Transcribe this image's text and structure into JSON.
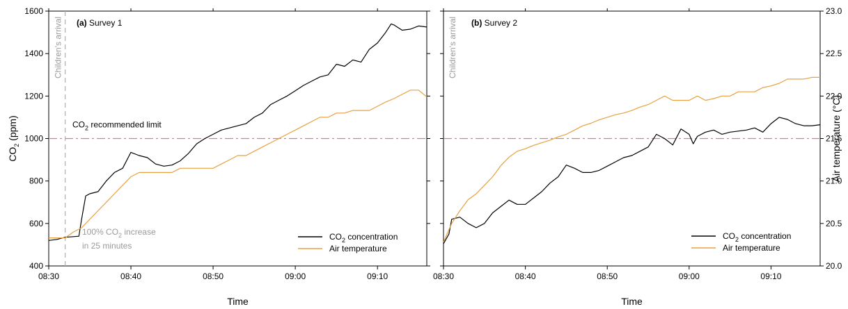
{
  "chart_data": [
    {
      "type": "line",
      "panel_label": "(a)",
      "title": "Survey 1",
      "xlabel": "Time",
      "ylabel": "CO₂ (ppm)",
      "x_ticks": [
        "08:30",
        "08:40",
        "08:50",
        "09:00",
        "09:10"
      ],
      "xlim": [
        "08:30",
        "09:16"
      ],
      "ylim": [
        400,
        1600
      ],
      "y_ticks": [
        "400",
        "600",
        "800",
        "1000",
        "1200",
        "1400",
        "1600"
      ],
      "y2lim": [
        20.0,
        23.0
      ],
      "grid": false,
      "legend_position": "bottom-right",
      "colors": {
        "co2": "#000000",
        "temp": "#e8a040",
        "limit": "#d98080",
        "arrival": "#b0b0b0"
      },
      "reference_line": {
        "value": 1000,
        "label": "CO₂ recommended limit"
      },
      "vertical_marker": {
        "x": "08:32",
        "label": "Children's arrival"
      },
      "annotation": [
        "100% CO₂ increase",
        "in 25 minutes"
      ],
      "series": [
        {
          "name": "CO₂ concentration",
          "axis": "left",
          "points": [
            [
              "08:30",
              520
            ],
            [
              "08:31",
              525
            ],
            [
              "08:32",
              535
            ],
            [
              "08:33",
              538
            ],
            [
              "08:33:40",
              540
            ],
            [
              "08:34",
              620
            ],
            [
              "08:34:30",
              730
            ],
            [
              "08:35",
              740
            ],
            [
              "08:36",
              750
            ],
            [
              "08:37",
              800
            ],
            [
              "08:38",
              840
            ],
            [
              "08:39",
              860
            ],
            [
              "08:40",
              935
            ],
            [
              "08:41",
              920
            ],
            [
              "08:42",
              910
            ],
            [
              "08:43",
              880
            ],
            [
              "08:44",
              870
            ],
            [
              "08:45",
              875
            ],
            [
              "08:46",
              895
            ],
            [
              "08:47",
              930
            ],
            [
              "08:48",
              975
            ],
            [
              "08:49",
              1000
            ],
            [
              "08:50",
              1020
            ],
            [
              "08:51",
              1040
            ],
            [
              "08:52",
              1050
            ],
            [
              "08:53",
              1060
            ],
            [
              "08:54",
              1070
            ],
            [
              "08:55",
              1100
            ],
            [
              "08:56",
              1120
            ],
            [
              "08:57",
              1160
            ],
            [
              "08:58",
              1180
            ],
            [
              "08:59",
              1200
            ],
            [
              "09:00",
              1225
            ],
            [
              "09:01",
              1250
            ],
            [
              "09:02",
              1270
            ],
            [
              "09:03",
              1290
            ],
            [
              "09:04",
              1300
            ],
            [
              "09:05",
              1350
            ],
            [
              "09:06",
              1340
            ],
            [
              "09:07",
              1370
            ],
            [
              "09:08",
              1360
            ],
            [
              "09:09",
              1420
            ],
            [
              "09:10",
              1450
            ],
            [
              "09:11",
              1500
            ],
            [
              "09:11:40",
              1540
            ],
            [
              "09:12",
              1535
            ],
            [
              "09:13",
              1510
            ],
            [
              "09:14",
              1515
            ],
            [
              "09:15",
              1530
            ],
            [
              "09:16",
              1525
            ]
          ]
        },
        {
          "name": "Air temperature",
          "axis": "right",
          "points": [
            [
              "08:30",
              20.33
            ],
            [
              "08:32",
              20.33
            ],
            [
              "08:33",
              20.4
            ],
            [
              "08:34",
              20.45
            ],
            [
              "08:35",
              20.55
            ],
            [
              "08:36",
              20.65
            ],
            [
              "08:37",
              20.75
            ],
            [
              "08:38",
              20.85
            ],
            [
              "08:39",
              20.95
            ],
            [
              "08:40",
              21.05
            ],
            [
              "08:41",
              21.1
            ],
            [
              "08:42",
              21.1
            ],
            [
              "08:45",
              21.1
            ],
            [
              "08:46",
              21.15
            ],
            [
              "08:50",
              21.15
            ],
            [
              "08:51",
              21.2
            ],
            [
              "08:52",
              21.25
            ],
            [
              "08:53",
              21.3
            ],
            [
              "08:54",
              21.3
            ],
            [
              "08:55",
              21.35
            ],
            [
              "08:56",
              21.4
            ],
            [
              "08:57",
              21.45
            ],
            [
              "08:58",
              21.5
            ],
            [
              "08:59",
              21.55
            ],
            [
              "09:00",
              21.6
            ],
            [
              "09:01",
              21.65
            ],
            [
              "09:02",
              21.7
            ],
            [
              "09:03",
              21.75
            ],
            [
              "09:04",
              21.75
            ],
            [
              "09:05",
              21.8
            ],
            [
              "09:06",
              21.8
            ],
            [
              "09:07",
              21.83
            ],
            [
              "09:09",
              21.83
            ],
            [
              "09:10",
              21.88
            ],
            [
              "09:11",
              21.93
            ],
            [
              "09:12",
              21.97
            ],
            [
              "09:13",
              22.02
            ],
            [
              "09:14",
              22.07
            ],
            [
              "09:15",
              22.07
            ],
            [
              "09:16",
              21.99
            ]
          ]
        }
      ]
    },
    {
      "type": "line",
      "panel_label": "(b)",
      "title": "Survey 2",
      "xlabel": "Time",
      "ylabel": "Air temperature (°C)",
      "x_ticks": [
        "08:30",
        "08:40",
        "08:50",
        "09:00",
        "09:10"
      ],
      "xlim": [
        "08:30",
        "09:16"
      ],
      "ylim": [
        400,
        1600
      ],
      "y2lim": [
        20.0,
        23.0
      ],
      "y2_ticks": [
        "20.0",
        "20.5",
        "21.0",
        "21.5",
        "22.0",
        "22.5",
        "23.0"
      ],
      "grid": false,
      "legend_position": "bottom-right",
      "colors": {
        "co2": "#000000",
        "temp": "#e8a040",
        "limit": "#d98080",
        "arrival": "#b0b0b0"
      },
      "reference_line": {
        "value": 1000
      },
      "vertical_marker": {
        "x": "08:30",
        "label": "Children's arrival"
      },
      "series": [
        {
          "name": "CO₂ concentration",
          "axis": "left",
          "points": [
            [
              "08:30",
              505
            ],
            [
              "08:30:40",
              550
            ],
            [
              "08:31",
              620
            ],
            [
              "08:32",
              630
            ],
            [
              "08:33",
              600
            ],
            [
              "08:34",
              580
            ],
            [
              "08:35",
              600
            ],
            [
              "08:36",
              650
            ],
            [
              "08:37",
              680
            ],
            [
              "08:38",
              710
            ],
            [
              "08:39",
              690
            ],
            [
              "08:40",
              690
            ],
            [
              "08:41",
              720
            ],
            [
              "08:42",
              750
            ],
            [
              "08:43",
              790
            ],
            [
              "08:44",
              820
            ],
            [
              "08:45",
              875
            ],
            [
              "08:46",
              860
            ],
            [
              "08:47",
              840
            ],
            [
              "08:48",
              840
            ],
            [
              "08:49",
              850
            ],
            [
              "08:50",
              870
            ],
            [
              "08:51",
              890
            ],
            [
              "08:52",
              910
            ],
            [
              "08:53",
              920
            ],
            [
              "08:54",
              940
            ],
            [
              "08:55",
              960
            ],
            [
              "08:56",
              1020
            ],
            [
              "08:57",
              1000
            ],
            [
              "08:58",
              970
            ],
            [
              "08:59",
              1045
            ],
            [
              "09:00",
              1020
            ],
            [
              "09:00:30",
              975
            ],
            [
              "09:01",
              1010
            ],
            [
              "09:02",
              1030
            ],
            [
              "09:03",
              1040
            ],
            [
              "09:04",
              1020
            ],
            [
              "09:05",
              1030
            ],
            [
              "09:06",
              1035
            ],
            [
              "09:07",
              1040
            ],
            [
              "09:08",
              1050
            ],
            [
              "09:09",
              1030
            ],
            [
              "09:10",
              1070
            ],
            [
              "09:11",
              1100
            ],
            [
              "09:12",
              1090
            ],
            [
              "09:13",
              1070
            ],
            [
              "09:14",
              1060
            ],
            [
              "09:15",
              1060
            ],
            [
              "09:16",
              1065
            ]
          ]
        },
        {
          "name": "Air temperature",
          "axis": "right",
          "points": [
            [
              "08:30",
              20.28
            ],
            [
              "08:31",
              20.5
            ],
            [
              "08:32",
              20.65
            ],
            [
              "08:33",
              20.78
            ],
            [
              "08:34",
              20.85
            ],
            [
              "08:35",
              20.95
            ],
            [
              "08:36",
              21.05
            ],
            [
              "08:37",
              21.18
            ],
            [
              "08:38",
              21.28
            ],
            [
              "08:39",
              21.35
            ],
            [
              "08:40",
              21.38
            ],
            [
              "08:41",
              21.42
            ],
            [
              "08:42",
              21.45
            ],
            [
              "08:43",
              21.48
            ],
            [
              "08:44",
              21.52
            ],
            [
              "08:45",
              21.55
            ],
            [
              "08:46",
              21.6
            ],
            [
              "08:47",
              21.65
            ],
            [
              "08:48",
              21.68
            ],
            [
              "08:49",
              21.72
            ],
            [
              "08:50",
              21.75
            ],
            [
              "08:51",
              21.78
            ],
            [
              "08:52",
              21.8
            ],
            [
              "08:53",
              21.83
            ],
            [
              "08:54",
              21.87
            ],
            [
              "08:55",
              21.9
            ],
            [
              "08:56",
              21.95
            ],
            [
              "08:57",
              22.0
            ],
            [
              "08:58",
              21.95
            ],
            [
              "09:00",
              21.95
            ],
            [
              "09:01",
              22.0
            ],
            [
              "09:02",
              21.95
            ],
            [
              "09:03",
              21.97
            ],
            [
              "09:04",
              22.0
            ],
            [
              "09:05",
              22.0
            ],
            [
              "09:06",
              22.05
            ],
            [
              "09:08",
              22.05
            ],
            [
              "09:09",
              22.1
            ],
            [
              "09:10",
              22.12
            ],
            [
              "09:11",
              22.15
            ],
            [
              "09:12",
              22.2
            ],
            [
              "09:14",
              22.2
            ],
            [
              "09:15",
              22.22
            ],
            [
              "09:16",
              22.22
            ]
          ]
        }
      ]
    }
  ]
}
